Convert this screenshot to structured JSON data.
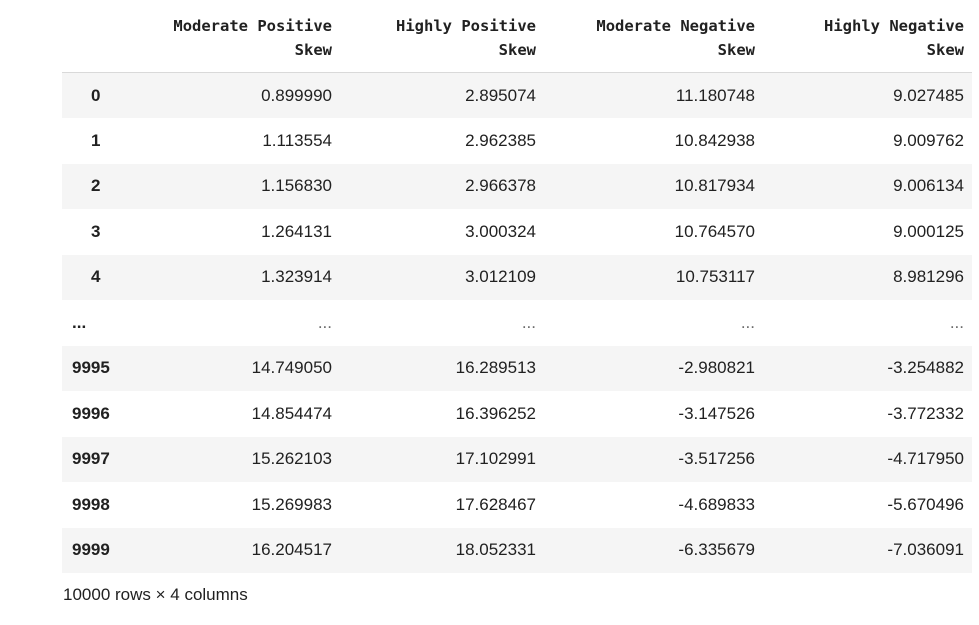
{
  "table": {
    "index_header": "",
    "columns": [
      [
        "Moderate Positive",
        "Skew"
      ],
      [
        "Highly Positive",
        "Skew"
      ],
      [
        "Moderate Negative",
        "Skew"
      ],
      [
        "Highly Negative",
        "Skew"
      ]
    ],
    "rows": [
      {
        "index": "0",
        "values": [
          "0.899990",
          "2.895074",
          "11.180748",
          "9.027485"
        ]
      },
      {
        "index": "1",
        "values": [
          "1.113554",
          "2.962385",
          "10.842938",
          "9.009762"
        ]
      },
      {
        "index": "2",
        "values": [
          "1.156830",
          "2.966378",
          "10.817934",
          "9.006134"
        ]
      },
      {
        "index": "3",
        "values": [
          "1.264131",
          "3.000324",
          "10.764570",
          "9.000125"
        ]
      },
      {
        "index": "4",
        "values": [
          "1.323914",
          "3.012109",
          "10.753117",
          "8.981296"
        ]
      },
      {
        "index": "...",
        "values": [
          "...",
          "...",
          "...",
          "..."
        ]
      },
      {
        "index": "9995",
        "values": [
          "14.749050",
          "16.289513",
          "-2.980821",
          "-3.254882"
        ]
      },
      {
        "index": "9996",
        "values": [
          "14.854474",
          "16.396252",
          "-3.147526",
          "-3.772332"
        ]
      },
      {
        "index": "9997",
        "values": [
          "15.262103",
          "17.102991",
          "-3.517256",
          "-4.717950"
        ]
      },
      {
        "index": "9998",
        "values": [
          "15.269983",
          "17.628467",
          "-4.689833",
          "-5.670496"
        ]
      },
      {
        "index": "9999",
        "values": [
          "16.204517",
          "18.052331",
          "-6.335679",
          "-7.036091"
        ]
      }
    ]
  },
  "shape_text": "10000 rows × 4 columns",
  "colors": {
    "row_stripe": "#f5f5f5",
    "text": "#212121",
    "header_rule": "#d9d9d9"
  }
}
